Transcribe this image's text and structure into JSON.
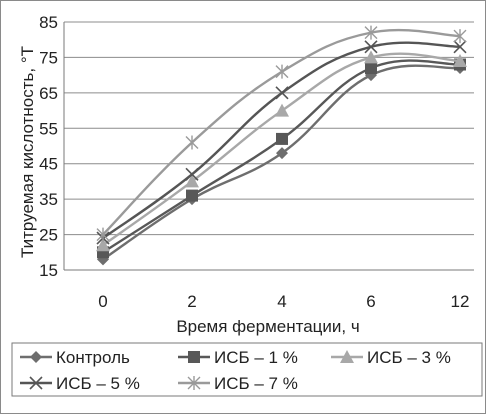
{
  "chart_data": {
    "type": "line",
    "title": "",
    "xlabel": "Время ферментации, ч",
    "ylabel": "Титруемая кислотность, °Т",
    "categories": [
      "0",
      "2",
      "4",
      "6",
      "12"
    ],
    "ylim": [
      15,
      85
    ],
    "yticks": [
      "15",
      "25",
      "35",
      "45",
      "55",
      "65",
      "75",
      "85"
    ],
    "grid": "horizontal",
    "legend_position": "bottom",
    "series": [
      {
        "name": "Контроль",
        "values": [
          18,
          35,
          48,
          70,
          72
        ],
        "marker": "diamond",
        "color": "#6e6e6e"
      },
      {
        "name": "ИСБ – 1 %",
        "values": [
          20,
          36,
          52,
          72,
          73
        ],
        "marker": "square",
        "color": "#585858"
      },
      {
        "name": "ИСБ – 3 %",
        "values": [
          22,
          40,
          60,
          75,
          74
        ],
        "marker": "triangle",
        "color": "#a8a8a8"
      },
      {
        "name": "ИСБ – 5 %",
        "values": [
          24,
          42,
          65,
          78,
          78
        ],
        "marker": "x",
        "color": "#555555"
      },
      {
        "name": "ИСБ – 7 %",
        "values": [
          25,
          51,
          71,
          82,
          81
        ],
        "marker": "star",
        "color": "#9a9a9a"
      }
    ]
  }
}
